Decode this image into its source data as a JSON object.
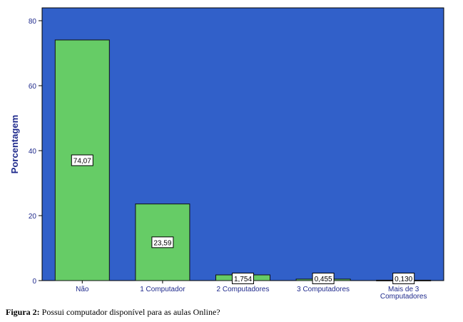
{
  "chart_data": {
    "type": "bar",
    "categories": [
      "Não",
      "1 Computador",
      "2 Computadores",
      "3 Computadores",
      "Mais de 3 Computadores"
    ],
    "category_lines": [
      [
        "Não"
      ],
      [
        "1 Computador"
      ],
      [
        "2 Computadores"
      ],
      [
        "3 Computadores"
      ],
      [
        "Mais de 3",
        "Computadores"
      ]
    ],
    "values": [
      74.07,
      23.59,
      1.754,
      0.455,
      0.13
    ],
    "data_labels": [
      "74,07",
      "23,59",
      "1,754",
      "0,455",
      "0,130"
    ],
    "ylabel": "Porcentagem",
    "xlabel": "",
    "ylim": [
      0,
      80
    ],
    "yticks": [
      0,
      20,
      40,
      60,
      80
    ],
    "grid": false,
    "colors": {
      "plot_bg": "#3160c9",
      "bar": "#66cc66",
      "bar_edge": "#111111",
      "axis": "#000000",
      "text": "#1f2a8c"
    }
  },
  "caption": {
    "label": "Figura 2:",
    "text": " Possui computador disponível para as aulas Online?"
  }
}
